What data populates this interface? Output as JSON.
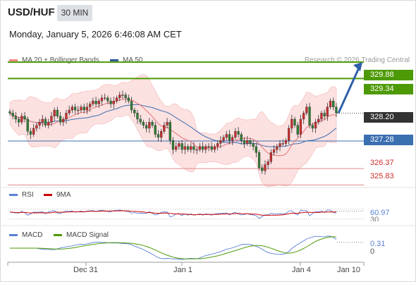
{
  "header": {
    "symbol": "USD/HUF",
    "timeframe": "30 MIN",
    "datetime": "Monday, January 5, 2026 6:46:08 AM CET"
  },
  "legend": {
    "ma20": "MA 20 + Bollinger Bands",
    "ma50": "MA 50",
    "credit": "Research © 2026 Trading Central"
  },
  "colors": {
    "green_level": "#4e9a06",
    "support_line": "#3a6fb0",
    "red_level": "#e38a8a",
    "candle_up": "#cc2e2e",
    "ma20": "#e57373",
    "ma50": "#3a6fb0",
    "bollinger_fill": "#fbd9d9",
    "arrow": "#2f5fa8",
    "current_label_bg": "#333333",
    "rsi": "#5b7fd4",
    "rsi_ma": "#cc0000",
    "macd": "#5b7fd4",
    "macd_signal": "#4e9a06"
  },
  "chart_data": [
    {
      "type": "candlestick",
      "title": "USD/HUF",
      "x_ticks": [
        "Dec 31",
        "Jan 1",
        "Jan 4",
        "Jan 10"
      ],
      "ylim": [
        325.7,
        330.0
      ],
      "levels": [
        {
          "value": 329.88,
          "label": "329.88",
          "kind": "resistance"
        },
        {
          "value": 329.34,
          "label": "329.34",
          "kind": "resistance"
        },
        {
          "value": 328.2,
          "label": "328.20",
          "kind": "current"
        },
        {
          "value": 327.28,
          "label": "327.28",
          "kind": "pivot"
        },
        {
          "value": 326.37,
          "label": "326.37",
          "kind": "support"
        },
        {
          "value": 325.83,
          "label": "325.83",
          "kind": "support"
        }
      ],
      "close": [
        328.2,
        328.1,
        328.0,
        327.9,
        328.1,
        328.0,
        327.6,
        327.5,
        327.7,
        327.8,
        327.9,
        328.0,
        327.8,
        327.9,
        328.1,
        328.3,
        328.1,
        327.9,
        328.0,
        328.2,
        328.3,
        328.4,
        328.3,
        328.3,
        328.4,
        328.3,
        328.4,
        328.5,
        328.6,
        328.5,
        328.6,
        328.7,
        328.7,
        328.6,
        328.5,
        328.6,
        328.7,
        328.8,
        328.8,
        328.7,
        328.6,
        328.3,
        328.2,
        328.0,
        327.9,
        327.8,
        327.7,
        327.9,
        327.8,
        327.5,
        327.4,
        327.6,
        327.8,
        327.9,
        327.3,
        327.0,
        327.1,
        327.2,
        327.0,
        327.1,
        327.0,
        327.1,
        327.0,
        327.0,
        327.1,
        327.0,
        327.1,
        327.1,
        327.0,
        327.1,
        327.2,
        327.3,
        327.4,
        327.5,
        327.3,
        327.4,
        327.6,
        327.5,
        327.3,
        327.2,
        327.3,
        327.2,
        327.1,
        326.9,
        326.4,
        326.3,
        326.5,
        326.6,
        326.9,
        327.0,
        327.1,
        327.2,
        327.2,
        327.3,
        327.7,
        328.0,
        327.8,
        327.5,
        328.0,
        328.2,
        328.4,
        327.8,
        327.7,
        327.9,
        328.0,
        328.2,
        328.1,
        328.4,
        328.6,
        328.4,
        328.2
      ],
      "macd": {
        "latest": 0.31,
        "zero": 0
      }
    },
    {
      "type": "line",
      "title": "RSI",
      "series": [
        {
          "name": "RSI"
        },
        {
          "name": "9MA"
        }
      ],
      "latest": 60.97
    }
  ],
  "rsi": {
    "label": "RSI",
    "ma_label": "9MA",
    "value": "60.97",
    "cut": "30"
  },
  "macd": {
    "label": "MACD",
    "signal_label": "MACD Signal",
    "value": "0.31",
    "zero": "0"
  }
}
